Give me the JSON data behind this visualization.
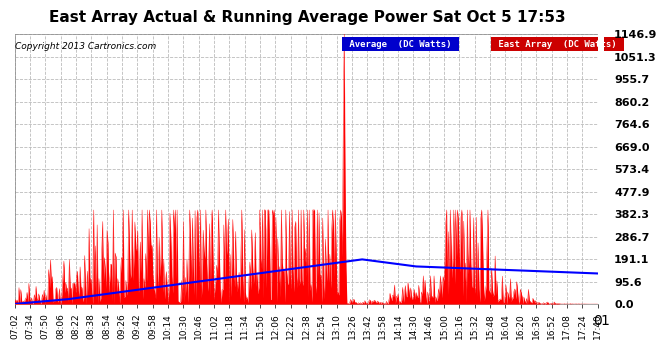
{
  "title": "East Array Actual & Running Average Power Sat Oct 5 17:53",
  "copyright": "Copyright 2013 Cartronics.com",
  "ymax": 1146.9,
  "yticks": [
    0.0,
    95.6,
    191.1,
    286.7,
    382.3,
    477.9,
    573.4,
    669.0,
    764.6,
    860.2,
    955.7,
    1051.3,
    1146.9
  ],
  "xtick_labels": [
    "07:02",
    "07:34",
    "07:50",
    "08:06",
    "08:22",
    "08:38",
    "08:54",
    "09:26",
    "09:42",
    "09:58",
    "10:14",
    "10:30",
    "10:46",
    "11:02",
    "11:18",
    "11:34",
    "11:50",
    "12:06",
    "12:22",
    "12:38",
    "12:54",
    "13:10",
    "13:26",
    "13:42",
    "13:58",
    "14:14",
    "14:30",
    "14:46",
    "15:00",
    "15:16",
    "15:32",
    "15:48",
    "16:04",
    "16:20",
    "16:36",
    "16:52",
    "17:08",
    "17:24",
    "17:40"
  ],
  "background_color": "#ffffff",
  "plot_bg_color": "#ffffff",
  "grid_color": "#bbbbbb",
  "area_color": "#ff0000",
  "avg_line_color": "#0000ff",
  "title_fontsize": 11,
  "tick_fontsize": 6.5,
  "copyright_fontsize": 7
}
